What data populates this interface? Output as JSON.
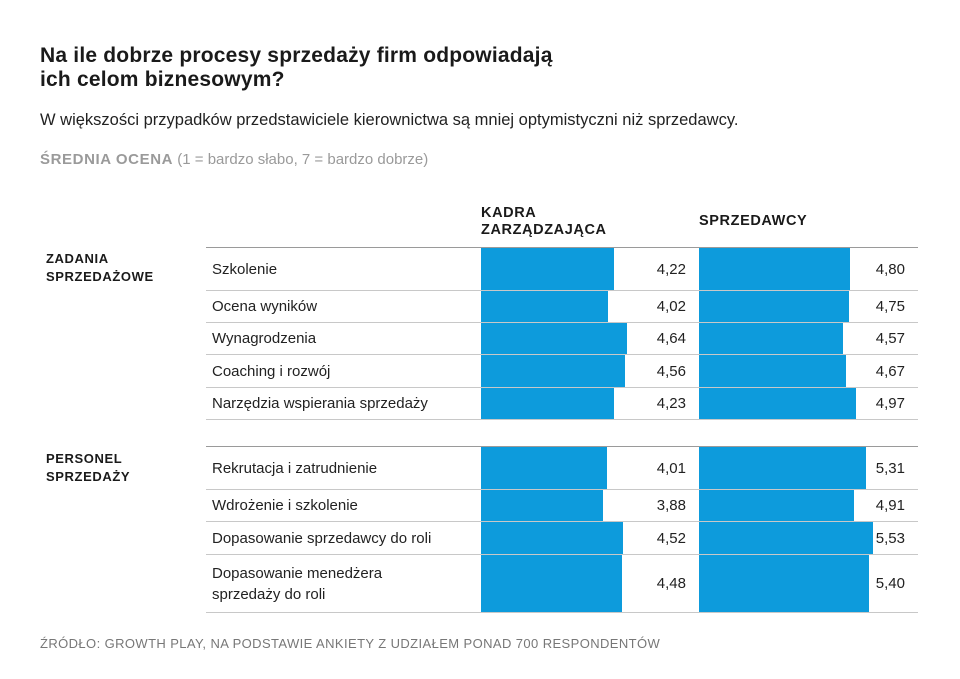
{
  "header": {
    "title_line1": "Na ile dobrze procesy sprzedaży firm odpowiadają",
    "title_line2": "ich celom biznesowym?",
    "subtitle": "W większości przypadków przedstawiciele kierownictwa są mniej optymistyczni niż sprzedawcy.",
    "scale_bold": "ŚREDNIA OCENA",
    "scale_rest": " (1 = bardzo słabo, 7 = bardzo dobrze)"
  },
  "source": "ŹRÓDŁO: GROWTH PLAY, NA PODSTAWIE ANKIETY Z UDZIAŁEM PONAD 700 RESPONDENTÓW",
  "colors": {
    "bar": "#0d9bdc"
  },
  "chart_data": {
    "type": "bar",
    "orientation": "horizontal",
    "scale": [
      1,
      7
    ],
    "series_names": [
      "KADRA ZARZĄDZAJĄCA",
      "SPRZEDAWCY"
    ],
    "series_names_lines": [
      [
        "KADRA",
        "ZARZĄDZAJĄCA"
      ],
      [
        "SPRZEDAWCY"
      ]
    ],
    "groups": [
      {
        "label_lines": [
          "ZADANIA",
          "SPRZEDAŻOWE"
        ],
        "rows": [
          {
            "label": [
              "Szkolenie"
            ],
            "values": [
              4.22,
              4.8
            ],
            "display": [
              "4,22",
              "4,80"
            ]
          },
          {
            "label": [
              "Ocena wyników"
            ],
            "values": [
              4.02,
              4.75
            ],
            "display": [
              "4,02",
              "4,75"
            ]
          },
          {
            "label": [
              "Wynagrodzenia"
            ],
            "values": [
              4.64,
              4.57
            ],
            "display": [
              "4,64",
              "4,57"
            ]
          },
          {
            "label": [
              "Coaching i rozwój"
            ],
            "values": [
              4.56,
              4.67
            ],
            "display": [
              "4,56",
              "4,67"
            ]
          },
          {
            "label": [
              "Narzędzia wspierania sprzedaży"
            ],
            "values": [
              4.23,
              4.97
            ],
            "display": [
              "4,23",
              "4,97"
            ]
          }
        ]
      },
      {
        "label_lines": [
          "PERSONEL",
          "SPRZEDAŻY"
        ],
        "rows": [
          {
            "label": [
              "Rekrutacja i zatrudnienie"
            ],
            "values": [
              4.01,
              5.31
            ],
            "display": [
              "4,01",
              "5,31"
            ]
          },
          {
            "label": [
              "Wdrożenie i szkolenie"
            ],
            "values": [
              3.88,
              4.91
            ],
            "display": [
              "3,88",
              "4,91"
            ]
          },
          {
            "label": [
              "Dopasowanie sprzedawcy do roli"
            ],
            "values": [
              4.52,
              5.53
            ],
            "display": [
              "4,52",
              "5,53"
            ]
          },
          {
            "label": [
              "Dopasowanie menedżera",
              "sprzedaży do roli"
            ],
            "values": [
              4.48,
              5.4
            ],
            "display": [
              "4,48",
              "5,40"
            ]
          }
        ]
      }
    ]
  }
}
